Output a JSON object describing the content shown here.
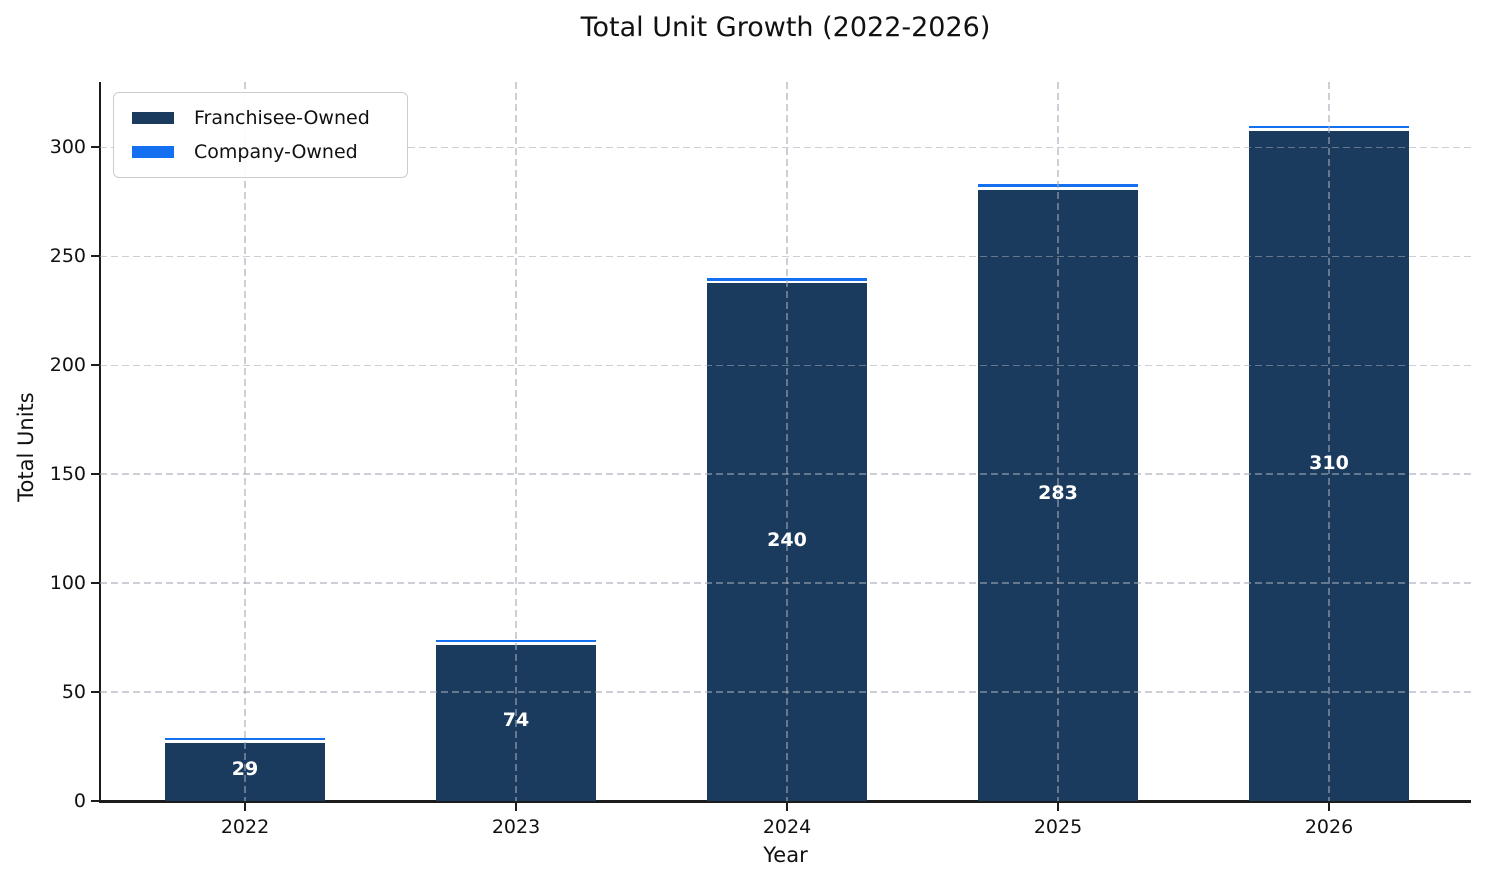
{
  "title": "Total Unit Growth (2022-2026)",
  "colors": {
    "franchisee": "#1A3A5E",
    "company": "#1470F0",
    "grid": "#a3aab4",
    "axis": "#1c1c1c",
    "bar_label_text": "#ffffff"
  },
  "legend": {
    "items": [
      {
        "label": "Franchisee-Owned",
        "color_key": "franchisee"
      },
      {
        "label": "Company-Owned",
        "color_key": "company"
      }
    ]
  },
  "axes": {
    "xlabel": "Year",
    "ylabel": "Total Units",
    "xticks": [
      "2022",
      "2023",
      "2024",
      "2025",
      "2026"
    ],
    "yticks": [
      0,
      50,
      100,
      150,
      200,
      250,
      300
    ]
  },
  "chart_data": {
    "type": "bar",
    "stacked": true,
    "title": "Total Unit Growth (2022-2026)",
    "xlabel": "Year",
    "ylabel": "Total Units",
    "categories": [
      "2022",
      "2023",
      "2024",
      "2025",
      "2026"
    ],
    "series": [
      {
        "name": "Franchisee-Owned",
        "values": [
          28,
          73,
          239,
          282,
          309
        ]
      },
      {
        "name": "Company-Owned",
        "values": [
          1,
          1,
          1,
          1,
          1
        ]
      }
    ],
    "totals": [
      29,
      74,
      240,
      283,
      310
    ],
    "bar_labels": [
      "29",
      "74",
      "240",
      "283",
      "310"
    ],
    "ylim": [
      0,
      330
    ],
    "yticks": [
      0,
      50,
      100,
      150,
      200,
      250,
      300
    ],
    "grid": "dashed",
    "legend_position": "upper left"
  }
}
